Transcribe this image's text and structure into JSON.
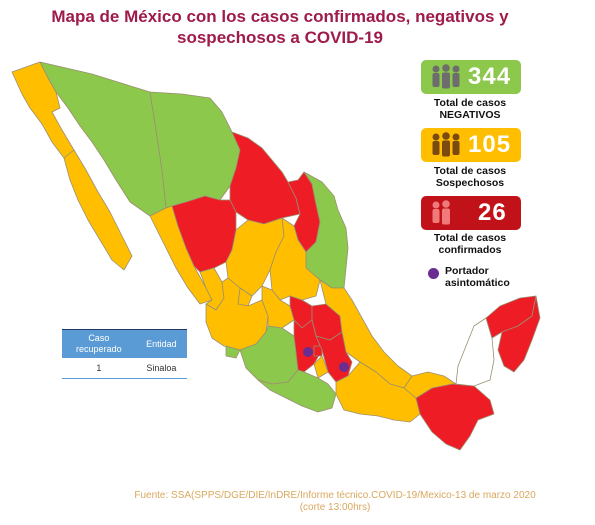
{
  "title_line1": "Mapa de México con los casos confirmados, negativos y",
  "title_line2": "sospechosos a COVID-19",
  "colors": {
    "negative": "#8cc84b",
    "suspect": "#ffbf00",
    "confirmed": "#ee1c25",
    "carrier": "#6a2d91",
    "outline": "#9b8f72",
    "table_header": "#5b9bd5"
  },
  "legend": {
    "negatives": {
      "value": "344",
      "label1": "Total de casos",
      "label2": "NEGATIVOS",
      "icon": "people-group-icon"
    },
    "suspects": {
      "value": "105",
      "label1": "Total de casos",
      "label2": "Sospechosos",
      "icon": "people-group-icon"
    },
    "confirmed": {
      "value": "26",
      "label1": "Total de casos",
      "label2": "confirmados",
      "icon": "people-group-icon"
    },
    "carrier": {
      "label1": "Portador",
      "label2": "asintomático"
    }
  },
  "recovered_table": {
    "headers": [
      "Caso\nrecuperado",
      "Entidad"
    ],
    "header1_line1": "Caso",
    "header1_line2": "recuperado",
    "header2": "Entidad",
    "rows": [
      {
        "count": "1",
        "entity": "Sinaloa"
      }
    ]
  },
  "source_line1": "Fuente: SSA(SPPS/DGE/DIE/InDRE/Informe técnico.COVID-19/Mexico-13 de marzo 2020",
  "source_line2": "(corte 13:00hrs)"
}
